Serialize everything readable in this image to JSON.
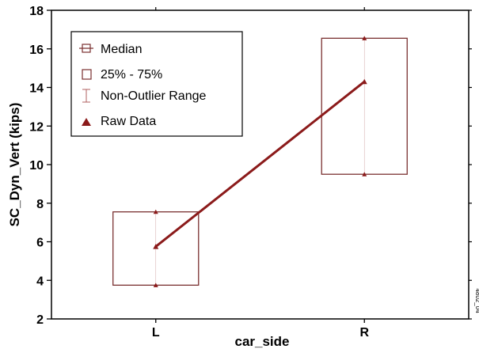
{
  "chart_data": {
    "type": "box",
    "xlabel": "car_side",
    "ylabel": "SC_Dyn_Vert (kips)",
    "categories": [
      "L",
      "R"
    ],
    "ylim": [
      2,
      18
    ],
    "yticks": [
      2,
      4,
      6,
      8,
      10,
      12,
      14,
      16,
      18
    ],
    "grid": false,
    "legend_position": "top-left",
    "legend": [
      "Median",
      "25% - 75%",
      "Non-Outlier Range",
      "Raw Data"
    ],
    "boxes": [
      {
        "category": "L",
        "q1": 3.75,
        "q3": 7.55,
        "median": 5.75,
        "raw": [
          3.75,
          7.55
        ]
      },
      {
        "category": "R",
        "q1": 9.5,
        "q3": 16.55,
        "median": 14.3,
        "raw": [
          9.5,
          16.55
        ]
      }
    ],
    "colors": {
      "series": "#8b1a1a",
      "box": "#7a3030",
      "axis": "#000000"
    },
    "side_code": "4802_04"
  }
}
